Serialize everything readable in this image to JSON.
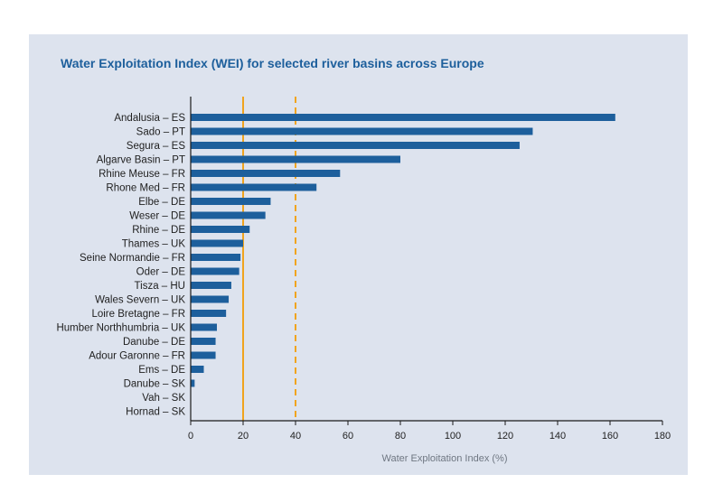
{
  "chart_data": {
    "type": "bar",
    "orientation": "horizontal",
    "title": "Water Exploitation Index (WEI) for selected river basins across Europe",
    "xlabel": "Water Exploitation Index (%)",
    "ylabel": "",
    "xlim": [
      0,
      180
    ],
    "xticks": [
      0,
      20,
      40,
      60,
      80,
      100,
      120,
      140,
      160,
      180
    ],
    "grid": false,
    "categories": [
      "Andalusia – ES",
      "Sado – PT",
      "Segura –  ES",
      "Algarve Basin – PT",
      "Rhine Meuse – FR",
      "Rhone Med – FR",
      "Elbe – DE",
      "Weser – DE",
      "Rhine – DE",
      "Thames – UK",
      "Seine Normandie – FR",
      "Oder – DE",
      "Tisza – HU",
      "Wales Severn – UK",
      "Loire Bretagne – FR",
      "Humber Northhumbria – UK",
      "Danube – DE",
      "Adour Garonne – FR",
      "Ems – DE",
      "Danube – SK",
      "Vah – SK",
      "Hornad – SK"
    ],
    "values": [
      162,
      130.5,
      125.5,
      80,
      57,
      48,
      30.5,
      28.5,
      22.5,
      20,
      19,
      18.5,
      15.5,
      14.5,
      13.5,
      10,
      9.5,
      9.5,
      5,
      1.5,
      0,
      0
    ],
    "reference_lines": [
      {
        "value": 20,
        "style": "solid",
        "color": "#f0a41e"
      },
      {
        "value": 40,
        "style": "dashed",
        "color": "#f0a41e"
      }
    ],
    "colors": {
      "bar": "#1d5f9c",
      "axis": "#1a1a1a",
      "background": "#dde3ee",
      "title": "#1d5f9c"
    }
  }
}
